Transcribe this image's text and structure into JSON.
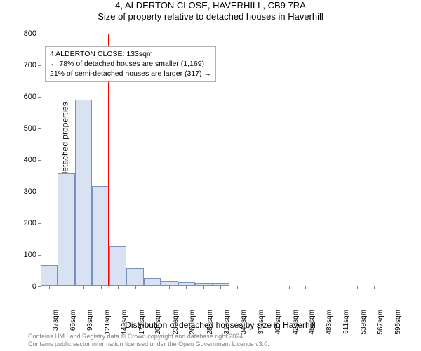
{
  "title": "4, ALDERTON CLOSE, HAVERHILL, CB9 7RA",
  "subtitle": "Size of property relative to detached houses in Haverhill",
  "ylabel": "Number of detached properties",
  "xlabel": "Distribution of detached houses by size in Haverhill",
  "chart": {
    "type": "histogram",
    "ylim": [
      0,
      800
    ],
    "ytick_step": 100,
    "x_min": 23,
    "x_max": 609,
    "bin_width": 28,
    "bar_fill": "#d9e2f3",
    "bar_stroke": "#7a90c0",
    "ref_line_x": 133,
    "ref_line_color": "#ff0000",
    "xticks": [
      37,
      65,
      93,
      121,
      149,
      177,
      204,
      232,
      260,
      288,
      316,
      344,
      372,
      400,
      428,
      455,
      483,
      511,
      539,
      567,
      595
    ],
    "xtick_suffix": "sqm",
    "bins": [
      {
        "start": 23,
        "count": 65
      },
      {
        "start": 51,
        "count": 355
      },
      {
        "start": 79,
        "count": 590
      },
      {
        "start": 107,
        "count": 315
      },
      {
        "start": 135,
        "count": 125
      },
      {
        "start": 163,
        "count": 55
      },
      {
        "start": 191,
        "count": 25
      },
      {
        "start": 219,
        "count": 15
      },
      {
        "start": 247,
        "count": 12
      },
      {
        "start": 275,
        "count": 10
      },
      {
        "start": 303,
        "count": 10
      },
      {
        "start": 331,
        "count": 0
      },
      {
        "start": 359,
        "count": 0
      },
      {
        "start": 387,
        "count": 0
      },
      {
        "start": 415,
        "count": 0
      },
      {
        "start": 443,
        "count": 0
      },
      {
        "start": 471,
        "count": 0
      },
      {
        "start": 499,
        "count": 0
      },
      {
        "start": 527,
        "count": 0
      },
      {
        "start": 555,
        "count": 0
      },
      {
        "start": 583,
        "count": 0
      }
    ]
  },
  "legend": {
    "line1": "4 ALDERTON CLOSE: 133sqm",
    "line2": "← 78% of detached houses are smaller (1,169)",
    "line3": "21% of semi-detached houses are larger (317) →"
  },
  "attribution": {
    "line1": "Contains HM Land Registry data © Crown copyright and database right 2024.",
    "line2": "Contains public sector information licensed under the Open Government Licence v3.0."
  }
}
